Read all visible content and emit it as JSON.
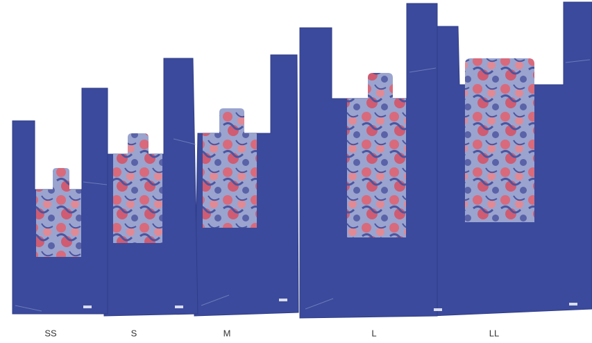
{
  "labels": [
    "SS",
    "S",
    "M",
    "L",
    "LL"
  ]
}
